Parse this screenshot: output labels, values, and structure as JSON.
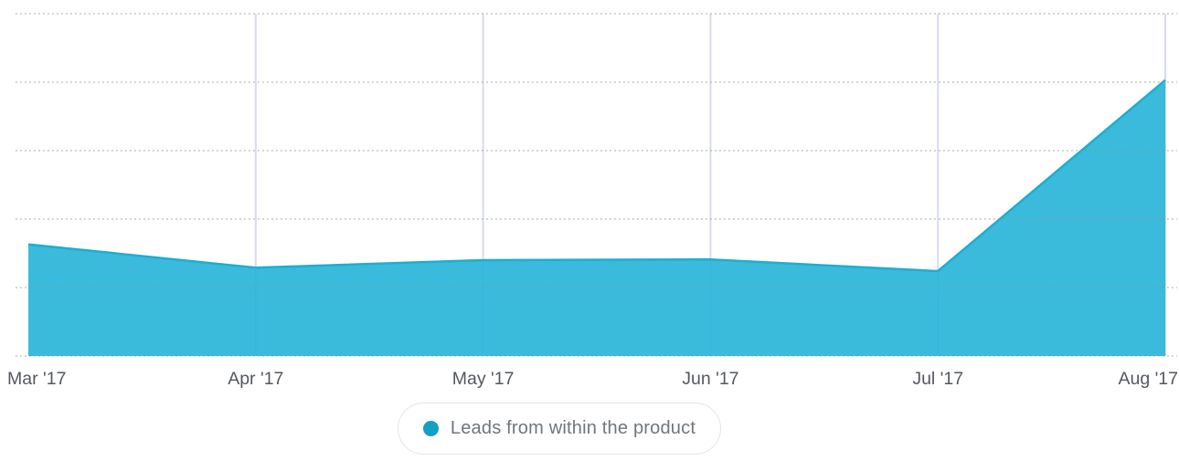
{
  "chart_data": {
    "type": "area",
    "title": "",
    "xlabel": "",
    "ylabel": "",
    "categories": [
      "Mar '17",
      "Apr '17",
      "May '17",
      "Jun '17",
      "Jul '17",
      "Aug '17"
    ],
    "series": [
      {
        "name": "Leads from within the product",
        "values": [
          1.63,
          1.29,
          1.4,
          1.41,
          1.24,
          4.03
        ]
      }
    ],
    "ylim": [
      0,
      5.2
    ],
    "y_axis_labels_visible": false,
    "grid": {
      "horizontal_dotted_values": [
        0,
        1,
        2,
        3,
        4,
        5
      ],
      "vertical_solid_at_categories": [
        "Apr '17",
        "May '17",
        "Jun '17",
        "Jul '17",
        "Aug '17"
      ]
    },
    "legend_position": "bottom-center"
  },
  "legend": {
    "label": "Leads from within the product"
  },
  "colors": {
    "series_fill": "#25b4d8",
    "series_fill_opacity": 0.9,
    "series_stroke": "#1fadd2",
    "legend_dot": "#149fc4",
    "vertical_grid": "#d8daf2",
    "horizontal_grid_dots": "#8d9499",
    "axis_label_text": "#54585e",
    "legend_text": "#6f767c",
    "legend_border": "#e3e6e9",
    "background": "#ffffff"
  }
}
